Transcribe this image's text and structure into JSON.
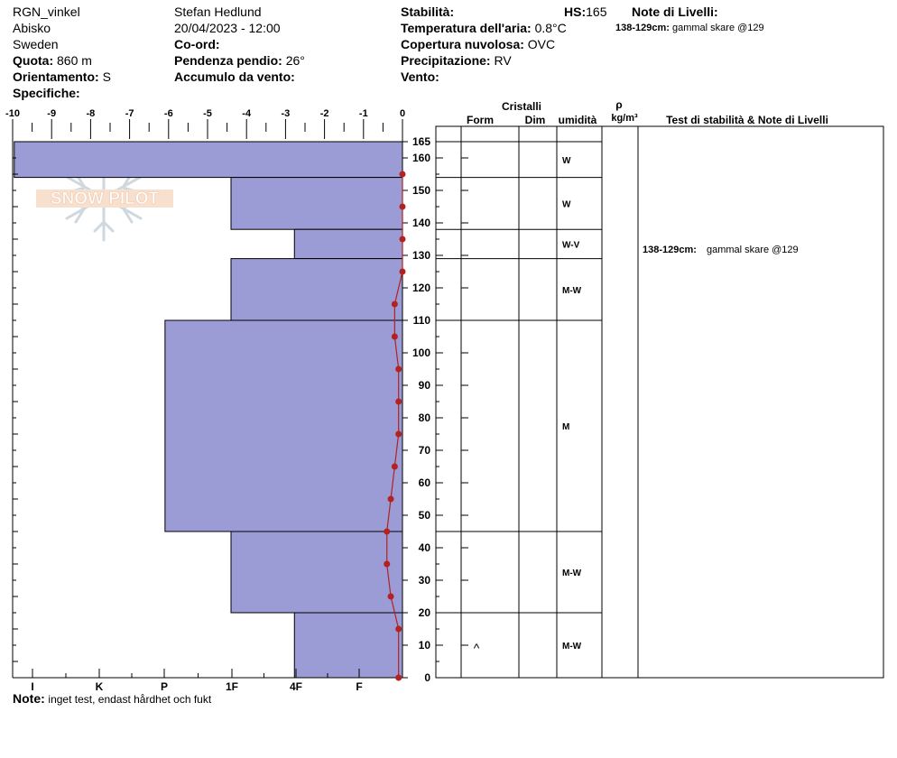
{
  "header": {
    "col1": {
      "site": "RGN_vinkel",
      "location": "Abisko",
      "country": "Sweden",
      "elevation_label": "Quota:",
      "elevation_value": "860 m",
      "aspect_label": "Orientamento:",
      "aspect_value": "S",
      "specifics_label": "Specifiche:"
    },
    "col2": {
      "observer": "Stefan Hedlund",
      "datetime": "20/04/2023 - 12:00",
      "coord_label": "Co-ord:",
      "slope_label": "Pendenza pendio:",
      "slope_value": "26°",
      "wind_loading_label": "Accumulo da vento:"
    },
    "col3": {
      "stability_label": "Stabilità:",
      "air_temp_label": "Temperatura dell'aria:",
      "air_temp_value": "0.8°C",
      "cloud_label": "Copertura nuvolosa:",
      "cloud_value": "OVC",
      "precip_label": "Precipitazione:",
      "precip_value": "RV",
      "wind_label": "Vento:"
    },
    "hs_label": "HS:",
    "hs_value": "165",
    "layer_notes_label": "Note di Livelli:",
    "layer_note_range": "138-129cm:",
    "layer_note_text": "gammal skare @129"
  },
  "footer": {
    "note_label": "Note:",
    "note_text": "inget test, endast hårdhet och fukt"
  },
  "colors": {
    "hardness_fill": "#9b9bd5",
    "temp_line": "#b22222"
  },
  "chart_data": {
    "type": "snow-profile",
    "temp_axis": {
      "ticks": [
        -10,
        -9,
        -8,
        -7,
        -6,
        -5,
        -4,
        -3,
        -2,
        -1,
        0
      ],
      "range": [
        -10,
        0
      ]
    },
    "hardness_axis": {
      "labels": [
        "I",
        "K",
        "P",
        "1F",
        "4F",
        "F"
      ],
      "values": [
        1,
        2,
        3,
        4,
        5,
        6
      ]
    },
    "height_axis": {
      "ticks": [
        0,
        10,
        20,
        30,
        40,
        50,
        60,
        70,
        80,
        90,
        100,
        110,
        120,
        130,
        140,
        150,
        160,
        165
      ],
      "range": [
        0,
        165
      ]
    },
    "table_headers": {
      "crystals": "Cristalli",
      "form": "Form",
      "size": "Dim",
      "wetness": "umidità",
      "density_symbol": "ρ",
      "density_unit": "kg/m³",
      "stability_notes": "Test di stabilità & Note di Livelli"
    },
    "layers": [
      {
        "top": 165,
        "bottom": 154,
        "hardness": 6,
        "wetness": "W"
      },
      {
        "top": 154,
        "bottom": 138,
        "hardness": 2.65,
        "wetness": "W"
      },
      {
        "top": 138,
        "bottom": 129,
        "hardness": 1.67,
        "wetness": "W-V"
      },
      {
        "top": 129,
        "bottom": 110,
        "hardness": 2.65,
        "wetness": "M-W"
      },
      {
        "top": 110,
        "bottom": 45,
        "hardness": 3.67,
        "wetness": "M"
      },
      {
        "top": 45,
        "bottom": 20,
        "hardness": 2.65,
        "wetness": "M-W"
      },
      {
        "top": 20,
        "bottom": 0,
        "hardness": 1.67,
        "wetness": "M-W",
        "form": "^"
      }
    ],
    "temperature_profile": [
      {
        "height": 155,
        "temp": 0.0
      },
      {
        "height": 145,
        "temp": 0.0
      },
      {
        "height": 135,
        "temp": 0.0
      },
      {
        "height": 125,
        "temp": 0.0
      },
      {
        "height": 115,
        "temp": -0.2
      },
      {
        "height": 105,
        "temp": -0.2
      },
      {
        "height": 95,
        "temp": -0.1
      },
      {
        "height": 85,
        "temp": -0.1
      },
      {
        "height": 75,
        "temp": -0.1
      },
      {
        "height": 65,
        "temp": -0.2
      },
      {
        "height": 55,
        "temp": -0.3
      },
      {
        "height": 45,
        "temp": -0.4
      },
      {
        "height": 35,
        "temp": -0.4
      },
      {
        "height": 25,
        "temp": -0.3
      },
      {
        "height": 15,
        "temp": -0.1
      },
      {
        "height": 0,
        "temp": -0.1
      }
    ],
    "layer_note": {
      "top": 138,
      "bottom": 129,
      "range": "138-129cm:",
      "text": "gammal skare @129"
    }
  }
}
